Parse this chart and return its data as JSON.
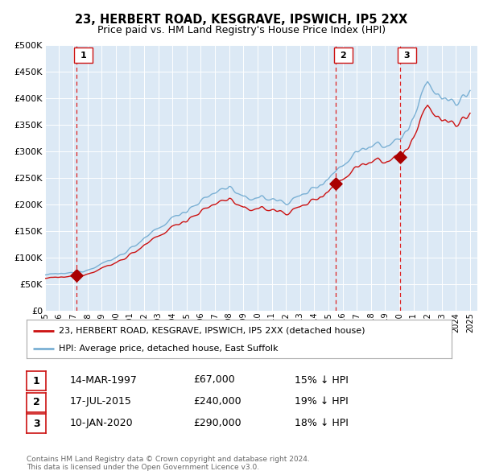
{
  "title": "23, HERBERT ROAD, KESGRAVE, IPSWICH, IP5 2XX",
  "subtitle": "Price paid vs. HM Land Registry's House Price Index (HPI)",
  "plot_bg_color": "#dce9f5",
  "ylim": [
    0,
    500000
  ],
  "yticks": [
    0,
    50000,
    100000,
    150000,
    200000,
    250000,
    300000,
    350000,
    400000,
    450000,
    500000
  ],
  "ytick_labels": [
    "£0",
    "£50K",
    "£100K",
    "£150K",
    "£200K",
    "£250K",
    "£300K",
    "£350K",
    "£400K",
    "£450K",
    "£500K"
  ],
  "xlim_min": 1995,
  "xlim_max": 2025.5,
  "sale_dates": [
    1997.21,
    2015.54,
    2020.04
  ],
  "sale_prices": [
    67000,
    240000,
    290000
  ],
  "sale_labels": [
    "1",
    "2",
    "3"
  ],
  "vline_color": "#dd2222",
  "marker_color": "#aa0000",
  "line_color_red": "#cc1111",
  "line_color_blue": "#7ab0d4",
  "legend_label_red": "23, HERBERT ROAD, KESGRAVE, IPSWICH, IP5 2XX (detached house)",
  "legend_label_blue": "HPI: Average price, detached house, East Suffolk",
  "table_data": [
    {
      "label": "1",
      "date": "14-MAR-1997",
      "price": "£67,000",
      "note": "15% ↓ HPI"
    },
    {
      "label": "2",
      "date": "17-JUL-2015",
      "price": "£240,000",
      "note": "19% ↓ HPI"
    },
    {
      "label": "3",
      "date": "10-JAN-2020",
      "price": "£290,000",
      "note": "18% ↓ HPI"
    }
  ],
  "footer": "Contains HM Land Registry data © Crown copyright and database right 2024.\nThis data is licensed under the Open Government Licence v3.0."
}
